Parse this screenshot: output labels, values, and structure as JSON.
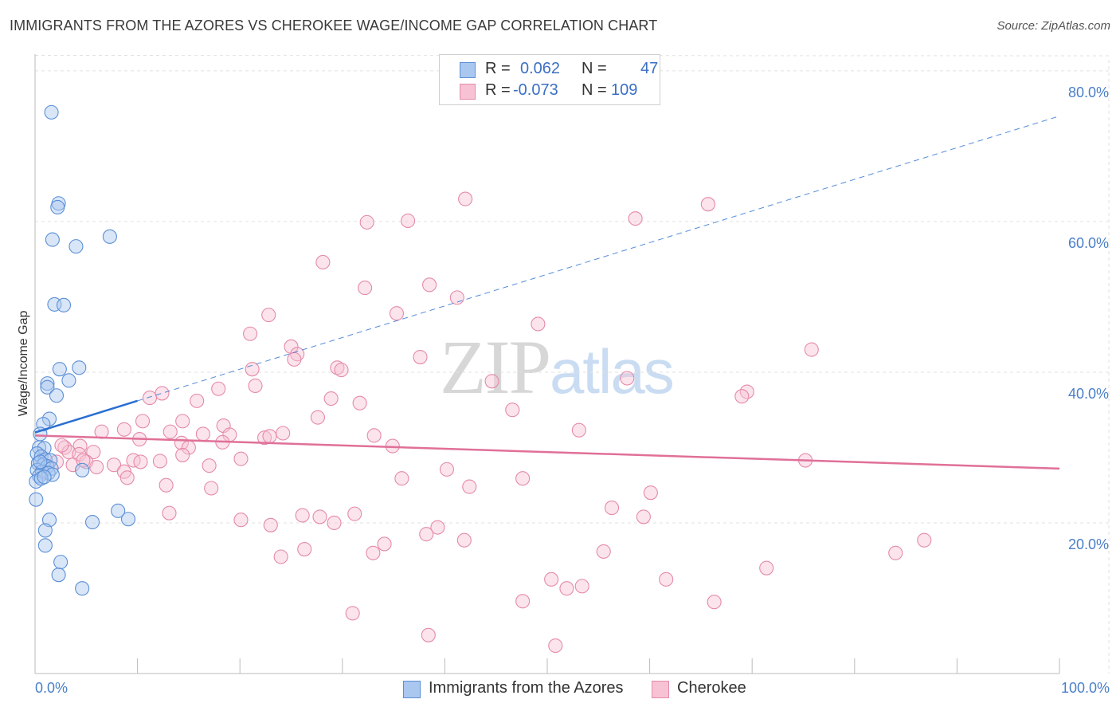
{
  "title": "IMMIGRANTS FROM THE AZORES VS CHEROKEE WAGE/INCOME GAP CORRELATION CHART",
  "source": "Source: ZipAtlas.com",
  "watermark": {
    "zip": "ZIP",
    "atlas": "atlas"
  },
  "legend": {
    "rows": [
      {
        "r_label": "R =",
        "r_value": "0.062",
        "n_label": "N =",
        "n_value": "47"
      },
      {
        "r_label": "R =",
        "r_value": "-0.073",
        "n_label": "N =",
        "n_value": "109"
      }
    ]
  },
  "bottom_legend": {
    "series1": "Immigrants from the Azores",
    "series2": "Cherokee"
  },
  "chart_data": {
    "type": "scatter",
    "title": "IMMIGRANTS FROM THE AZORES VS CHEROKEE WAGE/INCOME GAP CORRELATION CHART",
    "xlabel": "",
    "ylabel": "Wage/Income Gap",
    "xlim": [
      0,
      100
    ],
    "ylim": [
      0,
      82
    ],
    "x_tick_labels": [
      "0.0%",
      "100.0%"
    ],
    "y_ticks": [
      20,
      40,
      60,
      80
    ],
    "y_tick_labels": [
      "20.0%",
      "40.0%",
      "60.0%",
      "80.0%"
    ],
    "grid": true,
    "colors": {
      "series1_fill": "#aac7ef",
      "series1_stroke": "#5b8fd6",
      "series1_line": "#2a6fd1",
      "series2_fill": "#f7c3d4",
      "series2_stroke": "#e58aa9",
      "series2_line": "#e07098",
      "tick_text": "#4a7fc9",
      "grid": "#e2e2e2"
    },
    "series": [
      {
        "name": "Immigrants from the Azores",
        "trend": {
          "x": [
            0,
            10
          ],
          "y": [
            32.0,
            36.2
          ],
          "dashed_to_x": 100,
          "dashed_to_y": 74.0
        },
        "points": [
          [
            1.6,
            74.5
          ],
          [
            2.3,
            62.4
          ],
          [
            2.2,
            61.9
          ],
          [
            1.7,
            57.6
          ],
          [
            4.0,
            56.7
          ],
          [
            7.3,
            58.0
          ],
          [
            1.9,
            49.0
          ],
          [
            2.8,
            48.9
          ],
          [
            2.4,
            40.4
          ],
          [
            4.3,
            40.6
          ],
          [
            3.3,
            38.9
          ],
          [
            1.2,
            38.5
          ],
          [
            1.2,
            38.0
          ],
          [
            2.1,
            36.9
          ],
          [
            1.4,
            33.8
          ],
          [
            0.8,
            33.1
          ],
          [
            0.5,
            31.8
          ],
          [
            0.4,
            30.0
          ],
          [
            0.9,
            29.9
          ],
          [
            0.2,
            29.2
          ],
          [
            0.6,
            28.8
          ],
          [
            1.0,
            28.4
          ],
          [
            1.5,
            28.3
          ],
          [
            0.3,
            27.9
          ],
          [
            0.8,
            27.7
          ],
          [
            1.2,
            27.5
          ],
          [
            1.6,
            27.2
          ],
          [
            0.2,
            27.0
          ],
          [
            0.7,
            26.8
          ],
          [
            1.3,
            26.6
          ],
          [
            0.4,
            26.2
          ],
          [
            1.7,
            26.4
          ],
          [
            0.1,
            25.5
          ],
          [
            0.6,
            25.9
          ],
          [
            0.9,
            26.1
          ],
          [
            4.6,
            27.0
          ],
          [
            0.1,
            23.1
          ],
          [
            8.1,
            21.6
          ],
          [
            9.1,
            20.5
          ],
          [
            1.4,
            20.4
          ],
          [
            5.6,
            20.1
          ],
          [
            1.0,
            19.0
          ],
          [
            1.0,
            17.0
          ],
          [
            2.5,
            14.8
          ],
          [
            2.3,
            13.1
          ],
          [
            4.6,
            11.3
          ],
          [
            0.5,
            28.1
          ]
        ]
      },
      {
        "name": "Cherokee",
        "trend": {
          "x": [
            0,
            100
          ],
          "y": [
            31.6,
            27.2
          ]
        },
        "points": [
          [
            42.0,
            63.0
          ],
          [
            65.7,
            62.3
          ],
          [
            32.4,
            59.9
          ],
          [
            36.4,
            60.1
          ],
          [
            58.6,
            60.4
          ],
          [
            28.1,
            54.6
          ],
          [
            32.2,
            51.2
          ],
          [
            38.5,
            51.6
          ],
          [
            41.2,
            49.9
          ],
          [
            22.8,
            47.6
          ],
          [
            35.3,
            47.8
          ],
          [
            49.1,
            46.4
          ],
          [
            21.0,
            45.1
          ],
          [
            25.0,
            43.4
          ],
          [
            25.6,
            42.4
          ],
          [
            75.8,
            43.0
          ],
          [
            37.6,
            42.0
          ],
          [
            25.3,
            41.7
          ],
          [
            29.5,
            40.6
          ],
          [
            29.9,
            40.3
          ],
          [
            21.2,
            40.4
          ],
          [
            57.8,
            39.2
          ],
          [
            44.6,
            38.8
          ],
          [
            21.5,
            38.2
          ],
          [
            12.4,
            37.2
          ],
          [
            17.9,
            37.8
          ],
          [
            11.2,
            36.6
          ],
          [
            15.8,
            36.2
          ],
          [
            28.9,
            36.5
          ],
          [
            31.7,
            35.9
          ],
          [
            69.5,
            37.4
          ],
          [
            69.0,
            36.8
          ],
          [
            46.6,
            35.0
          ],
          [
            27.6,
            34.0
          ],
          [
            10.5,
            33.5
          ],
          [
            14.4,
            33.5
          ],
          [
            18.4,
            32.9
          ],
          [
            8.7,
            32.4
          ],
          [
            6.5,
            32.1
          ],
          [
            13.2,
            32.1
          ],
          [
            16.4,
            31.8
          ],
          [
            19.0,
            31.7
          ],
          [
            24.2,
            31.9
          ],
          [
            33.1,
            31.6
          ],
          [
            22.4,
            31.3
          ],
          [
            10.2,
            31.1
          ],
          [
            14.3,
            30.6
          ],
          [
            53.1,
            32.3
          ],
          [
            34.9,
            30.2
          ],
          [
            4.4,
            30.2
          ],
          [
            2.9,
            30.0
          ],
          [
            15.0,
            30.0
          ],
          [
            5.7,
            29.4
          ],
          [
            3.3,
            29.4
          ],
          [
            4.3,
            29.1
          ],
          [
            14.4,
            29.0
          ],
          [
            20.1,
            28.5
          ],
          [
            9.6,
            28.3
          ],
          [
            5.0,
            28.1
          ],
          [
            2.1,
            28.1
          ],
          [
            10.3,
            28.1
          ],
          [
            7.7,
            27.7
          ],
          [
            3.7,
            27.7
          ],
          [
            17.0,
            27.6
          ],
          [
            75.2,
            28.3
          ],
          [
            40.2,
            27.1
          ],
          [
            8.7,
            26.8
          ],
          [
            9.0,
            26.0
          ],
          [
            35.8,
            25.9
          ],
          [
            47.6,
            25.9
          ],
          [
            12.8,
            25.0
          ],
          [
            42.4,
            24.8
          ],
          [
            17.2,
            24.6
          ],
          [
            60.1,
            24.0
          ],
          [
            56.3,
            22.0
          ],
          [
            13.1,
            21.3
          ],
          [
            26.1,
            21.0
          ],
          [
            27.8,
            20.8
          ],
          [
            31.2,
            21.2
          ],
          [
            59.4,
            20.8
          ],
          [
            20.1,
            20.4
          ],
          [
            29.2,
            20.0
          ],
          [
            23.0,
            19.7
          ],
          [
            39.3,
            19.4
          ],
          [
            38.2,
            18.5
          ],
          [
            41.9,
            17.7
          ],
          [
            86.8,
            17.7
          ],
          [
            34.1,
            17.2
          ],
          [
            26.3,
            16.5
          ],
          [
            33.0,
            16.0
          ],
          [
            55.5,
            16.2
          ],
          [
            84.0,
            16.0
          ],
          [
            24.0,
            15.5
          ],
          [
            71.4,
            14.0
          ],
          [
            61.6,
            12.5
          ],
          [
            50.4,
            12.5
          ],
          [
            53.4,
            11.6
          ],
          [
            51.9,
            11.3
          ],
          [
            47.6,
            9.6
          ],
          [
            66.3,
            9.5
          ],
          [
            31.0,
            8.0
          ],
          [
            38.4,
            5.1
          ],
          [
            50.8,
            3.7
          ],
          [
            4.7,
            28.3
          ],
          [
            18.3,
            30.7
          ],
          [
            6.0,
            27.4
          ],
          [
            12.2,
            28.2
          ],
          [
            22.9,
            31.5
          ],
          [
            2.6,
            30.3
          ]
        ]
      }
    ]
  }
}
